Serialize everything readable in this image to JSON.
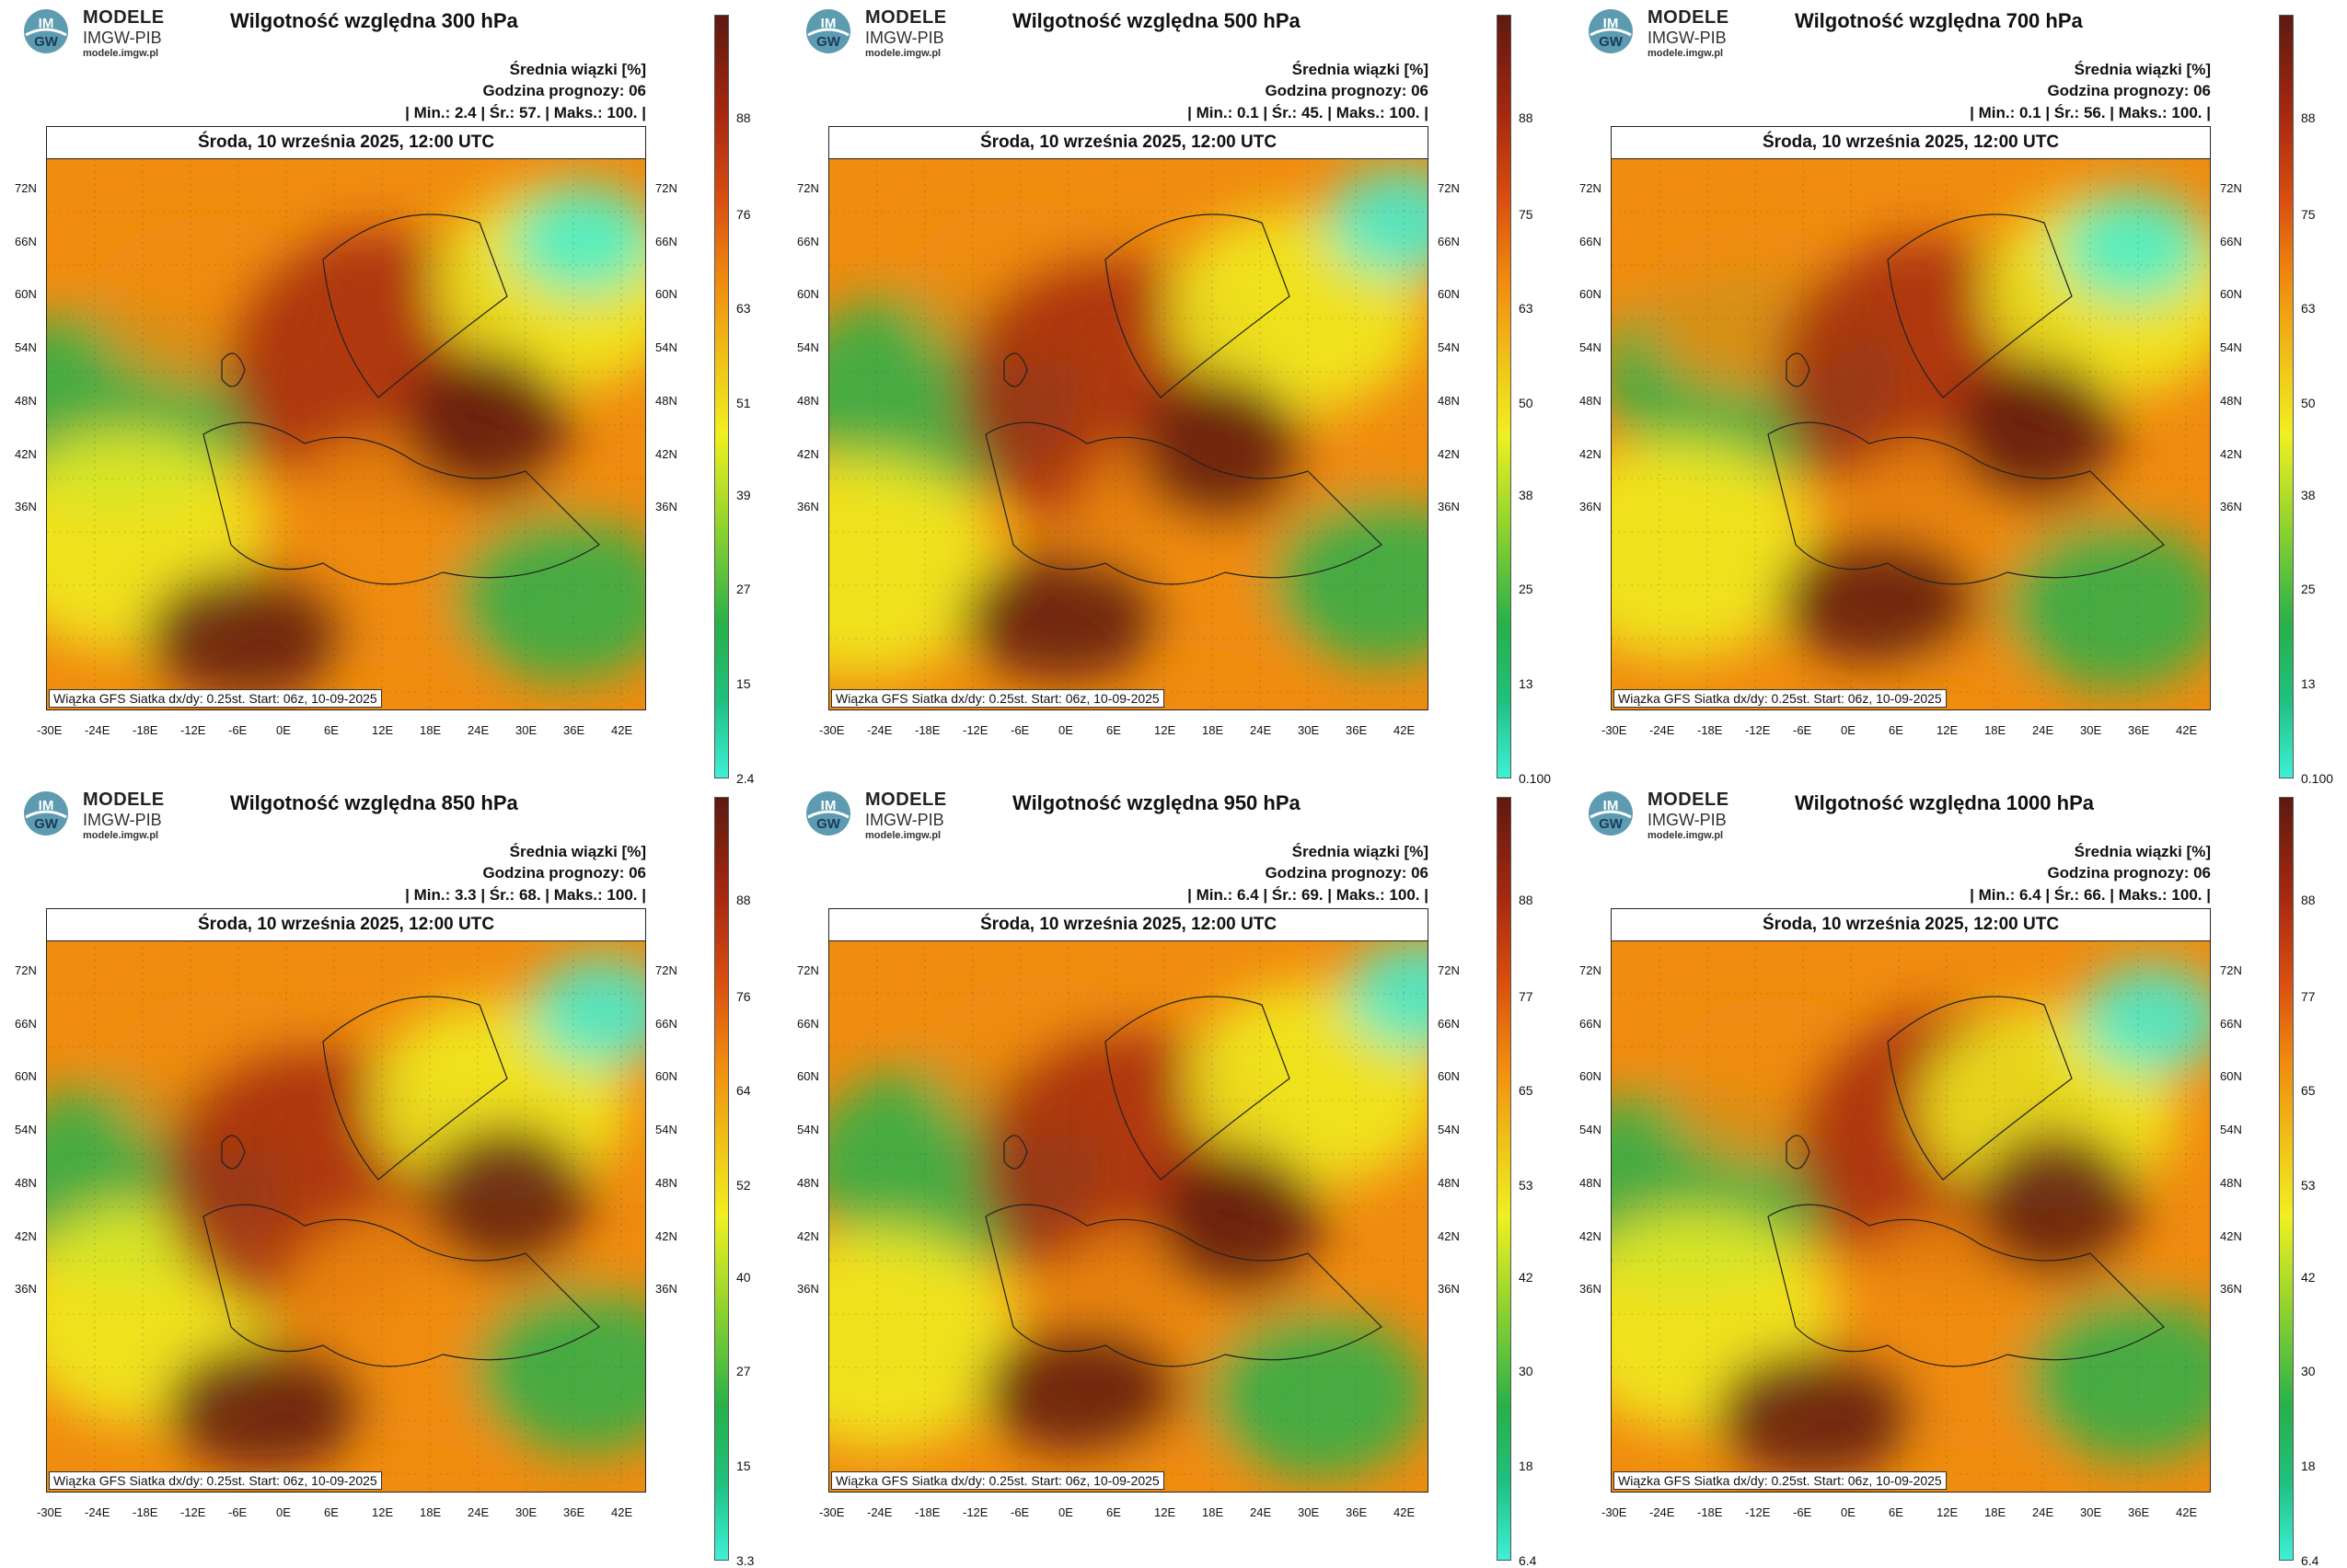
{
  "logo": {
    "brand": "MODELE",
    "org": "IMGW-PIB",
    "url": "modele.imgw.pl",
    "mark_top": "IM",
    "mark_bottom": "GW"
  },
  "meta": {
    "stat_label": "Średnia wiązki [%]",
    "forecast_hour": "Godzina prognozy: 06",
    "date": "Środa, 10 września 2025, 12:00 UTC",
    "footer": "Wiązka GFS Siatka dx/dy: 0.25st. Start: 06z, 10-09-2025"
  },
  "axes": {
    "lat": [
      "72N",
      "66N",
      "60N",
      "54N",
      "48N",
      "42N",
      "36N"
    ],
    "lon": [
      "-30E",
      "-24E",
      "-18E",
      "-12E",
      "-6E",
      "0E",
      "6E",
      "12E",
      "18E",
      "24E",
      "30E",
      "36E",
      "42E"
    ]
  },
  "panels": [
    {
      "title": "Wilgotność względna 300 hPa",
      "min": "2.4",
      "mean": "57.",
      "max": "100.",
      "ticks": [
        "88",
        "76",
        "63",
        "51",
        "39",
        "27",
        "15",
        "2.4"
      ]
    },
    {
      "title": "Wilgotność względna 500 hPa",
      "min": "0.1",
      "mean": "45.",
      "max": "100.",
      "ticks": [
        "88",
        "75",
        "63",
        "50",
        "38",
        "25",
        "13",
        "0.100"
      ]
    },
    {
      "title": "Wilgotność względna 700 hPa",
      "min": "0.1",
      "mean": "56.",
      "max": "100.",
      "ticks": [
        "88",
        "75",
        "63",
        "50",
        "38",
        "25",
        "13",
        "0.100"
      ]
    },
    {
      "title": "Wilgotność względna 850 hPa",
      "min": "3.3",
      "mean": "68.",
      "max": "100.",
      "ticks": [
        "88",
        "76",
        "64",
        "52",
        "40",
        "27",
        "15",
        "3.3"
      ]
    },
    {
      "title": "Wilgotność względna 950 hPa",
      "min": "6.4",
      "mean": "69.",
      "max": "100.",
      "ticks": [
        "88",
        "77",
        "65",
        "53",
        "42",
        "30",
        "18",
        "6.4"
      ]
    },
    {
      "title": "Wilgotność względna 1000 hPa",
      "min": "6.4",
      "mean": "66.",
      "max": "100.",
      "ticks": [
        "88",
        "77",
        "65",
        "53",
        "42",
        "30",
        "18",
        "6.4"
      ]
    }
  ],
  "colors": {
    "low": "#3ff0d8",
    "green": "#28b04a",
    "yellow": "#f0f020",
    "orange": "#f08c10",
    "red": "#a62810",
    "high": "#5e1a10"
  }
}
